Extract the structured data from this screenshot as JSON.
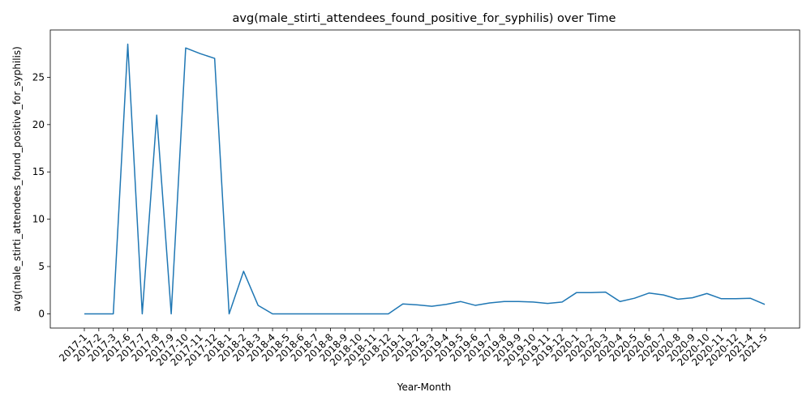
{
  "chart_data": {
    "type": "line",
    "title": "avg(male_stirti_attendees_found_positive_for_syphilis) over Time",
    "xlabel": "Year-Month",
    "ylabel": "avg(male_stirti_attendees_found_positive_for_syphilis)",
    "yticks": [
      0,
      5,
      10,
      15,
      20,
      25
    ],
    "ylim": [
      -1.5,
      30.0
    ],
    "grid": false,
    "line_color": "#1f77b4",
    "categories": [
      "2017-1",
      "2017-2",
      "2017-3",
      "2017-6",
      "2017-7",
      "2017-8",
      "2017-9",
      "2017-10",
      "2017-11",
      "2017-12",
      "2018-1",
      "2018-2",
      "2018-3",
      "2018-4",
      "2018-5",
      "2018-6",
      "2018-7",
      "2018-8",
      "2018-9",
      "2018-10",
      "2018-11",
      "2018-12",
      "2019-1",
      "2019-2",
      "2019-3",
      "2019-4",
      "2019-5",
      "2019-6",
      "2019-7",
      "2019-8",
      "2019-9",
      "2019-10",
      "2019-11",
      "2019-12",
      "2020-1",
      "2020-2",
      "2020-3",
      "2020-4",
      "2020-5",
      "2020-6",
      "2020-7",
      "2020-8",
      "2020-9",
      "2020-10",
      "2020-11",
      "2020-12",
      "2021-4",
      "2021-5"
    ],
    "values": [
      0,
      0,
      0,
      28.5,
      0,
      21.0,
      0,
      28.1,
      27.5,
      27.0,
      0,
      4.5,
      0.9,
      0,
      0,
      0,
      0,
      0,
      0,
      0,
      0,
      0,
      1.05,
      0.95,
      0.8,
      1.0,
      1.3,
      0.9,
      1.15,
      1.3,
      1.3,
      1.25,
      1.1,
      1.25,
      2.25,
      2.25,
      2.3,
      1.3,
      1.65,
      2.2,
      2.0,
      1.55,
      1.7,
      2.15,
      1.6,
      1.6,
      1.65,
      1.0
    ]
  }
}
